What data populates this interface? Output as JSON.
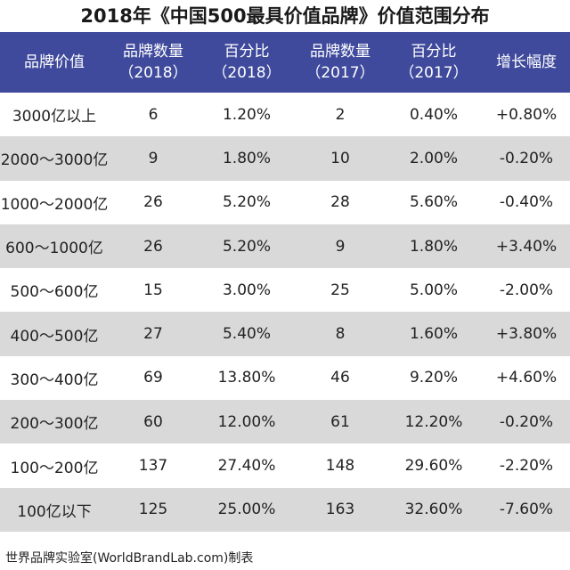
{
  "title": "2018年《中国500最具价值品牌》价值范围分布",
  "header": {
    "col0": "品牌价值",
    "col1_line1": "品牌数量",
    "col1_line2": "（2018）",
    "col2_line1": "百分比",
    "col2_line2": "（2018）",
    "col3_line1": "品牌数量",
    "col3_line2": "（2017）",
    "col4_line1": "百分比",
    "col4_line2": "（2017）",
    "col5": "增长幅度"
  },
  "rows": [
    {
      "range": "3000亿以上",
      "count2018": "6",
      "pct2018": "1.20%",
      "count2017": "2",
      "pct2017": "0.40%",
      "growth": "+0.80%"
    },
    {
      "range": "2000～3000亿",
      "count2018": "9",
      "pct2018": "1.80%",
      "count2017": "10",
      "pct2017": "2.00%",
      "growth": "-0.20%"
    },
    {
      "range": "1000～2000亿",
      "count2018": "26",
      "pct2018": "5.20%",
      "count2017": "28",
      "pct2017": "5.60%",
      "growth": "-0.40%"
    },
    {
      "range": "600～1000亿",
      "count2018": "26",
      "pct2018": "5.20%",
      "count2017": "9",
      "pct2017": "1.80%",
      "growth": "+3.40%"
    },
    {
      "range": "500～600亿",
      "count2018": "15",
      "pct2018": "3.00%",
      "count2017": "25",
      "pct2017": "5.00%",
      "growth": "-2.00%"
    },
    {
      "range": "400～500亿",
      "count2018": "27",
      "pct2018": "5.40%",
      "count2017": "8",
      "pct2017": "1.60%",
      "growth": "+3.80%"
    },
    {
      "range": "300～400亿",
      "count2018": "69",
      "pct2018": "13.80%",
      "count2017": "46",
      "pct2017": "9.20%",
      "growth": "+4.60%"
    },
    {
      "range": "200～300亿",
      "count2018": "60",
      "pct2018": "12.00%",
      "count2017": "61",
      "pct2017": "12.20%",
      "growth": "-0.20%"
    },
    {
      "range": "100～200亿",
      "count2018": "137",
      "pct2018": "27.40%",
      "count2017": "148",
      "pct2017": "29.60%",
      "growth": "-2.20%"
    },
    {
      "range": "100亿以下",
      "count2018": "125",
      "pct2018": "25.00%",
      "count2017": "163",
      "pct2017": "32.60%",
      "growth": "-7.60%"
    }
  ],
  "footer": "世界品牌实验室(WorldBrandLab.com)制表",
  "colors": {
    "header_bg": "#3f4a9c",
    "alt_row_bg": "#d9d9d9"
  }
}
